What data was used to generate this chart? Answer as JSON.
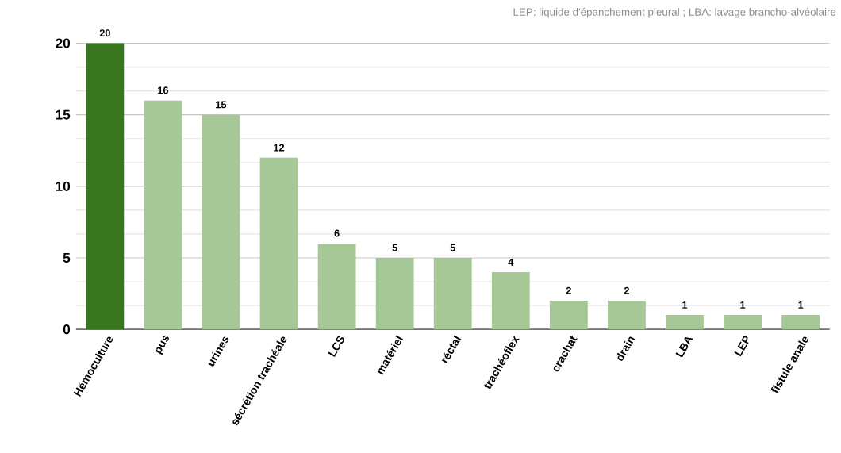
{
  "chart_data": {
    "type": "bar",
    "categories": [
      "Hémoculture",
      "pus",
      "urines",
      "sécrétion trachéale",
      "LCS",
      "matériel",
      "réctal",
      "trachéoflex",
      "crachat",
      "drain",
      "LBA",
      "LEP",
      "fistule anale"
    ],
    "values": [
      20,
      16,
      15,
      12,
      6,
      5,
      5,
      4,
      2,
      2,
      1,
      1,
      1
    ],
    "colors": [
      "#38761d",
      "#a5c896",
      "#a5c896",
      "#a5c896",
      "#a5c896",
      "#a5c896",
      "#a5c896",
      "#a5c896",
      "#a5c896",
      "#a5c896",
      "#a5c896",
      "#a5c896",
      "#a5c896"
    ],
    "ylim": [
      0,
      20
    ],
    "yticks": [
      0,
      5,
      10,
      15,
      20
    ],
    "grid": "y",
    "data_labels": true,
    "annotations": [
      "LEP: liquide d'épanchement pleural ; LBA: lavage brancho-alvéolaire"
    ]
  }
}
